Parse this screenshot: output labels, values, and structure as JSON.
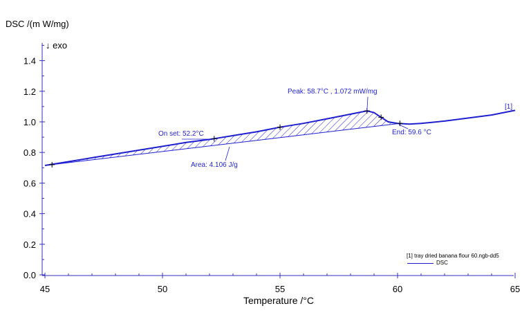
{
  "chart_data": {
    "type": "line",
    "ylabel": "DSC  /(m W/mg)",
    "direction_label": "↓ exo",
    "xlabel": "Temperature /°C",
    "xlim": [
      45,
      65
    ],
    "ylim": [
      0.0,
      1.5
    ],
    "x_ticks": [
      "45",
      "50",
      "55",
      "60",
      "65"
    ],
    "y_ticks": [
      "0.0",
      "0.2",
      "0.4",
      "0.6",
      "0.8",
      "1.0",
      "1.2",
      "1.4"
    ],
    "series": [
      {
        "name": "DSC",
        "x": [
          45.0,
          46,
          47,
          48,
          49,
          50,
          51,
          52,
          52.2,
          53,
          54,
          55,
          56,
          57,
          58,
          58.7,
          59.0,
          59.3,
          59.6,
          60.0,
          60.5,
          61,
          62,
          63,
          64,
          65.0
        ],
        "y": [
          0.715,
          0.74,
          0.765,
          0.79,
          0.815,
          0.84,
          0.865,
          0.885,
          0.89,
          0.91,
          0.935,
          0.965,
          0.99,
          1.02,
          1.05,
          1.072,
          1.06,
          1.03,
          1.0,
          0.99,
          0.985,
          0.99,
          1.005,
          1.025,
          1.045,
          1.075
        ]
      }
    ],
    "baseline": {
      "x": [
        45.0,
        60.1
      ],
      "y": [
        0.715,
        0.99
      ]
    },
    "series_tag": "[1]",
    "annotations": {
      "peak": "Peak: 58.7°C   , 1.072 mW/mg",
      "onset": "On set: 52.2°C",
      "end": "End: 59.6 °C",
      "area": "Area: 4.106 J/g"
    },
    "legend": {
      "file": "[1] tray dried banana flour 60.ngb-dd5",
      "series": "DSC"
    },
    "colors": {
      "curve": "#1f1fd0",
      "axes": "#3030c0",
      "text": "#000000"
    }
  }
}
